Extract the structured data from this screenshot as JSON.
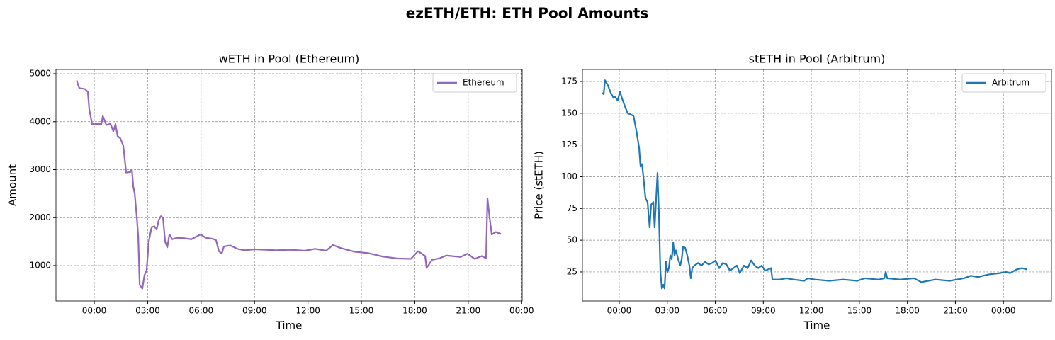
{
  "title": "ezETH/ETH: ETH Pool Amounts",
  "chart_data": [
    {
      "type": "line",
      "title": "wETH in Pool (Ethereum)",
      "x_label": "Time",
      "y_label": "Amount",
      "grid": true,
      "legend": "upper right",
      "xlim": [
        -2.15,
        24.03
      ],
      "ylim": [
        262,
        5089
      ],
      "xticks": [
        {
          "value": 0,
          "label": "00:00"
        },
        {
          "value": 3,
          "label": "03:00"
        },
        {
          "value": 6,
          "label": "06:00"
        },
        {
          "value": 9,
          "label": "09:00"
        },
        {
          "value": 12,
          "label": "12:00"
        },
        {
          "value": 15,
          "label": "15:00"
        },
        {
          "value": 18,
          "label": "18:00"
        },
        {
          "value": 21,
          "label": "21:00"
        },
        {
          "value": 24,
          "label": "00:00"
        }
      ],
      "yticks": [
        1000,
        2000,
        3000,
        4000,
        5000
      ],
      "x": [
        -0.99,
        -0.84,
        -0.52,
        -0.36,
        -0.28,
        -0.12,
        0.4,
        0.48,
        0.68,
        0.91,
        1.07,
        1.19,
        1.31,
        1.47,
        1.63,
        1.79,
        2.03,
        2.11,
        2.19,
        2.27,
        2.39,
        2.47,
        2.55,
        2.7,
        2.82,
        2.94,
        3.06,
        3.22,
        3.38,
        3.5,
        3.62,
        3.74,
        3.86,
        3.98,
        4.1,
        4.22,
        4.38,
        4.65,
        5.05,
        5.45,
        5.97,
        6.25,
        6.64,
        6.84,
        7.0,
        7.16,
        7.28,
        7.64,
        8.03,
        8.43,
        9.03,
        9.63,
        10.22,
        11.02,
        11.81,
        12.41,
        13.01,
        13.41,
        13.8,
        14.6,
        15.39,
        16.19,
        16.98,
        17.78,
        18.18,
        18.58,
        18.66,
        18.97,
        19.37,
        19.77,
        20.57,
        20.96,
        21.36,
        21.76,
        22.0,
        22.08,
        22.2,
        22.32,
        22.55,
        22.83
      ],
      "series": [
        {
          "name": "Ethereum",
          "color": "#9467bd",
          "values": [
            4860,
            4700,
            4680,
            4620,
            4260,
            3950,
            3950,
            4120,
            3930,
            3960,
            3800,
            3950,
            3700,
            3650,
            3500,
            2940,
            2950,
            3010,
            2650,
            2500,
            2000,
            1600,
            600,
            520,
            800,
            900,
            1500,
            1800,
            1820,
            1750,
            1950,
            2030,
            2000,
            1500,
            1380,
            1650,
            1550,
            1580,
            1570,
            1550,
            1650,
            1580,
            1560,
            1530,
            1300,
            1250,
            1400,
            1420,
            1350,
            1320,
            1340,
            1330,
            1320,
            1330,
            1310,
            1350,
            1310,
            1430,
            1370,
            1290,
            1260,
            1190,
            1150,
            1140,
            1300,
            1200,
            950,
            1120,
            1150,
            1210,
            1180,
            1250,
            1140,
            1200,
            1150,
            2400,
            2000,
            1650,
            1700,
            1660
          ]
        }
      ]
    },
    {
      "type": "line",
      "title": "stETH in Pool (Arbitrum)",
      "x_label": "Time",
      "y_label": "Price (stETH)",
      "grid": true,
      "legend": "upper right",
      "xlim": [
        -2.3,
        27.0
      ],
      "ylim": [
        2.1,
        184.5
      ],
      "xticks": [
        {
          "value": 0,
          "label": "00:00"
        },
        {
          "value": 3,
          "label": "03:00"
        },
        {
          "value": 6,
          "label": "06:00"
        },
        {
          "value": 9,
          "label": "09:00"
        },
        {
          "value": 12,
          "label": "12:00"
        },
        {
          "value": 15,
          "label": "15:00"
        },
        {
          "value": 18,
          "label": "18:00"
        },
        {
          "value": 21,
          "label": "21:00"
        },
        {
          "value": 24,
          "label": "00:00"
        }
      ],
      "yticks": [
        25,
        50,
        75,
        100,
        125,
        150,
        175
      ],
      "x": [
        -1.06,
        -0.97,
        -0.89,
        -0.71,
        -0.53,
        -0.35,
        -0.27,
        -0.09,
        0.04,
        0.22,
        0.4,
        0.53,
        0.71,
        0.89,
        1.06,
        1.24,
        1.33,
        1.42,
        1.51,
        1.64,
        1.77,
        1.9,
        1.99,
        2.13,
        2.21,
        2.39,
        2.48,
        2.57,
        2.66,
        2.75,
        2.83,
        2.92,
        3.01,
        3.1,
        3.19,
        3.28,
        3.37,
        3.45,
        3.54,
        3.68,
        3.81,
        3.9,
        3.99,
        4.12,
        4.25,
        4.38,
        4.47,
        4.56,
        4.69,
        4.92,
        5.14,
        5.36,
        5.58,
        5.8,
        6.02,
        6.24,
        6.47,
        6.69,
        6.91,
        7.13,
        7.35,
        7.53,
        7.79,
        8.02,
        8.24,
        8.46,
        8.68,
        8.9,
        9.12,
        9.48,
        9.57,
        10.01,
        10.45,
        10.89,
        11.56,
        11.78,
        12.22,
        13.11,
        13.99,
        14.88,
        15.32,
        16.21,
        16.56,
        16.65,
        16.74,
        17.54,
        18.42,
        18.87,
        19.75,
        20.64,
        21.52,
        21.97,
        22.41,
        23.07,
        23.74,
        24.18,
        24.4,
        24.84,
        25.15,
        25.46
      ],
      "series": [
        {
          "name": "Arbitrum",
          "color": "#1f77b4",
          "values": [
            166,
            165,
            176,
            172,
            166,
            162,
            163,
            160,
            167,
            160,
            154,
            150,
            149,
            148,
            137,
            123,
            108,
            110,
            100,
            83,
            80,
            60,
            78,
            80,
            60,
            103,
            70,
            25,
            12,
            15,
            12,
            33,
            25,
            28,
            38,
            35,
            48,
            38,
            42,
            35,
            30,
            35,
            45,
            44,
            38,
            30,
            20,
            28,
            30,
            32,
            30,
            33,
            31,
            32,
            34,
            28,
            32,
            31,
            26,
            28,
            30,
            24,
            30,
            28,
            34,
            30,
            28,
            30,
            26,
            28,
            19,
            19,
            20,
            19,
            18,
            20,
            19,
            18,
            19,
            18,
            20,
            19,
            20,
            25,
            20,
            19,
            20,
            17,
            19,
            18,
            20,
            22,
            21,
            23,
            24,
            25,
            24,
            27,
            28,
            27
          ]
        }
      ]
    }
  ]
}
